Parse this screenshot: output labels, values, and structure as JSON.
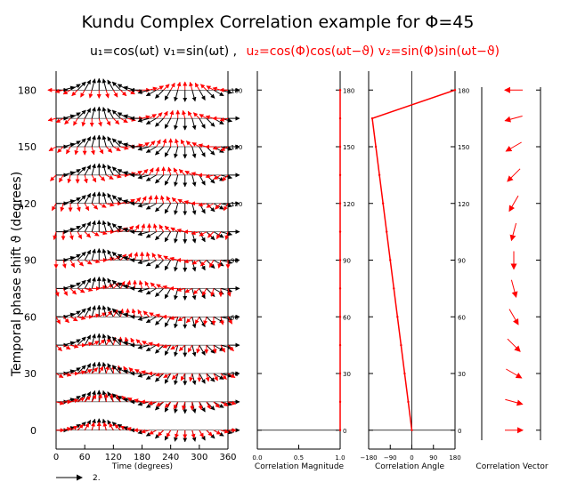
{
  "chart_data": {
    "type": "vector-panels",
    "title": "Kundu Complex Correlation example for Φ=45",
    "subtitle_black": "u₁=cos(ωt) v₁=sin(ωt) ,",
    "subtitle_red": "u₂=cos(Φ)cos(ωt−ϑ) v₂=sin(Φ)sin(ωt−ϑ)",
    "ylabel": "Temporal phase shift ϑ (degrees)",
    "phi_deg": 45,
    "phase_shifts": [
      0,
      15,
      30,
      45,
      60,
      75,
      90,
      105,
      120,
      135,
      150,
      165,
      180
    ],
    "y_ticks": [
      0,
      30,
      60,
      90,
      120,
      150,
      180
    ],
    "ylim": [
      -10,
      190
    ],
    "colors": {
      "series1": "#000000",
      "series2": "#ff0000"
    },
    "panels": {
      "time": {
        "xlabel": "Time (degrees)",
        "x_ticks": [
          0,
          60,
          120,
          180,
          240,
          300,
          360
        ],
        "xlim": [
          0,
          360
        ],
        "sample_times": [
          0,
          15,
          30,
          45,
          60,
          75,
          90,
          105,
          120,
          135,
          150,
          165,
          180,
          195,
          210,
          225,
          240,
          255,
          270,
          285,
          300,
          315,
          330,
          345,
          360
        ],
        "scale_label": "2."
      },
      "magnitude": {
        "xlabel": "Correlation Magnitude",
        "x_ticks": [
          "0.0",
          "0.5",
          "1.0"
        ],
        "xlim": [
          0,
          1
        ],
        "values": [
          1,
          1,
          1,
          1,
          1,
          1,
          1,
          1,
          1,
          1,
          1,
          1,
          1
        ]
      },
      "angle": {
        "xlabel": "Correlation Angle",
        "x_ticks": [
          "−180",
          "−90",
          "0",
          "90",
          "180"
        ],
        "xlim": [
          -180,
          180
        ],
        "values": [
          0,
          -15,
          -30,
          -45,
          -60,
          -75,
          -90,
          -105,
          -120,
          -135,
          -150,
          -165,
          180
        ]
      },
      "vector": {
        "xlabel": "Correlation Vector",
        "angles": [
          0,
          -15,
          -30,
          -45,
          -60,
          -75,
          -90,
          -105,
          -120,
          -135,
          -150,
          -165,
          180
        ]
      }
    }
  }
}
